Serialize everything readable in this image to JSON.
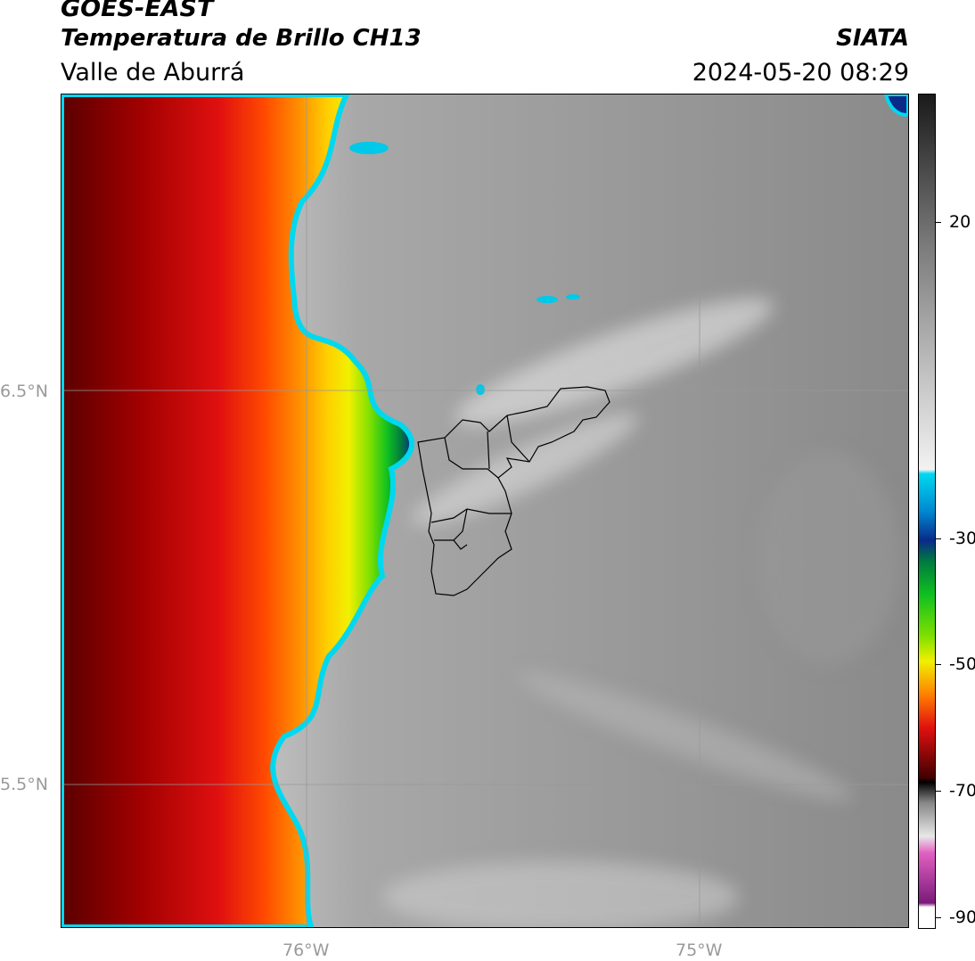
{
  "header": {
    "satellite": "GOES-EAST",
    "product": "Temperatura de Brillo CH13",
    "region": "Valle de Aburrá",
    "organization": "SIATA",
    "datetime": "2024-05-20 08:29"
  },
  "axes": {
    "lat_labels": [
      "6.5°N",
      "5.5°N"
    ],
    "lon_labels": [
      "76°W",
      "75°W"
    ]
  },
  "colorbar": {
    "min": -90,
    "max": 30,
    "tick_labels": [
      "20",
      "-30",
      "-50",
      "-70",
      "-90"
    ],
    "colors": {
      "warm_gray_top": "#1a1a1a",
      "warm_gray_bottom": "#f2f2f2",
      "cyan": "#00d8f0",
      "blue": "#0a2a8a",
      "green": "#10c020",
      "yellow": "#f0f000",
      "orange": "#ff8000",
      "red": "#e01010",
      "dark_red": "#400000",
      "magenta": "#e060c0",
      "purple": "#7a1a7a"
    }
  }
}
